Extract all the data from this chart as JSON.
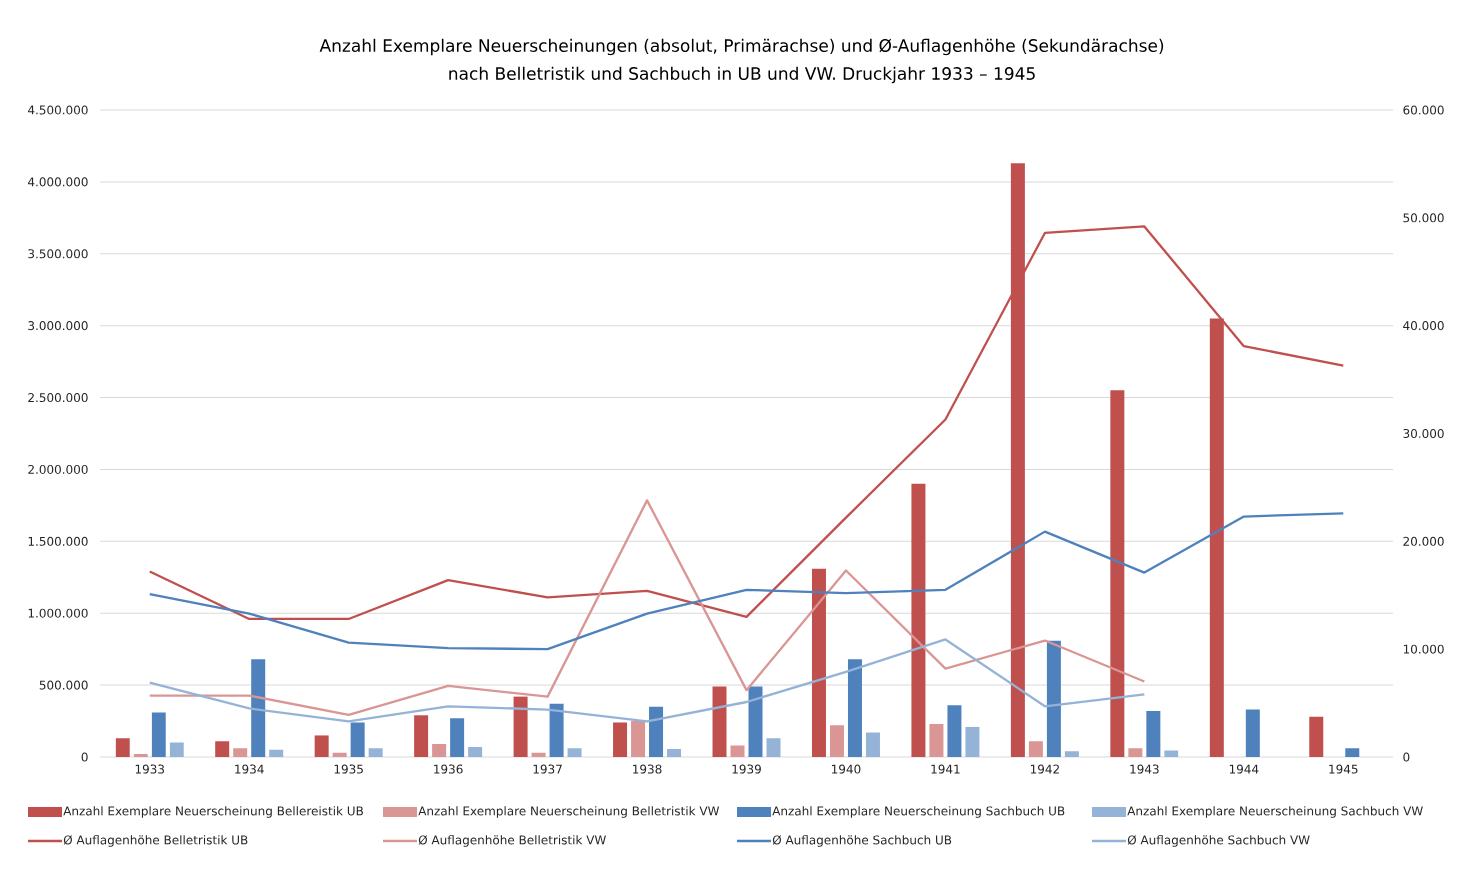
{
  "chart_data": {
    "type": "bar",
    "title": "Anzahl Exemplare Neuerscheinungen (absolut, Primärachse) und Ø-Auflagenhöhe (Sekundärachse)",
    "subtitle": "nach Belletristik und Sachbuch in UB und VW. Druckjahr 1933 – 1945",
    "categories": [
      "1933",
      "1934",
      "1935",
      "1936",
      "1937",
      "1938",
      "1939",
      "1940",
      "1941",
      "1942",
      "1943",
      "1944",
      "1945"
    ],
    "series": [
      {
        "name": "Anzahl Exemplare Neuerscheinung Bellereistik UB",
        "color": "#c0504d",
        "values": [
          130000,
          110000,
          150000,
          290000,
          420000,
          240000,
          490000,
          1310000,
          1900000,
          4130000,
          2550000,
          3050000,
          280000
        ]
      },
      {
        "name": "Anzahl Exemplare Neuerscheinung Belletristik VW",
        "color": "#d99694",
        "values": [
          20000,
          60000,
          30000,
          90000,
          30000,
          250000,
          80000,
          220000,
          230000,
          110000,
          60000,
          null,
          null
        ]
      },
      {
        "name": "Anzahl Exemplare Neuerscheinung Sachbuch UB",
        "color": "#4f81bd",
        "values": [
          310000,
          680000,
          240000,
          270000,
          370000,
          350000,
          490000,
          680000,
          360000,
          810000,
          320000,
          330000,
          60000
        ]
      },
      {
        "name": "Anzahl Exemplare Neuerscheinung Sachbuch VW",
        "color": "#95b3d7",
        "values": [
          100000,
          50000,
          60000,
          70000,
          60000,
          55000,
          130000,
          170000,
          210000,
          40000,
          45000,
          null,
          null
        ]
      },
      {
        "name": "Ø Auflagenhöhe Belletristik UB",
        "type": "line",
        "axis": "y2",
        "color": "#c0504d",
        "values": [
          17200,
          12800,
          12800,
          16400,
          14800,
          15400,
          13000,
          22200,
          31300,
          48600,
          49200,
          38100,
          36300
        ]
      },
      {
        "name": "Ø Auflagenhöhe Belletristik VW",
        "type": "line",
        "axis": "y2",
        "color": "#d99694",
        "values": [
          5700,
          5700,
          3900,
          6600,
          5600,
          23800,
          6200,
          17300,
          8200,
          10800,
          7000,
          null,
          null
        ]
      },
      {
        "name": "Ø Auflagenhöhe Sachbuch UB",
        "type": "line",
        "axis": "y2",
        "color": "#4f81bd",
        "values": [
          15100,
          13300,
          10600,
          10100,
          10000,
          13300,
          15500,
          15200,
          15500,
          20900,
          17100,
          22300,
          22600
        ]
      },
      {
        "name": "Ø Auflagenhöhe Sachbuch VW",
        "type": "line",
        "axis": "y2",
        "color": "#95b3d7",
        "values": [
          6900,
          4500,
          3300,
          4700,
          4400,
          3300,
          5100,
          7900,
          10900,
          4700,
          5800,
          null,
          null
        ]
      }
    ],
    "ylim": [
      0,
      4500000
    ],
    "yticks": [
      0,
      {
        "value": 500000,
        "label": "500.000"
      },
      {
        "value": 1000000,
        "label": "1.000.000"
      },
      {
        "value": 1500000,
        "label": "1.500.000"
      },
      {
        "value": 2000000,
        "label": "2.000.000"
      },
      {
        "value": 2500000,
        "label": "2.500.000"
      },
      {
        "value": 3000000,
        "label": "3.000.000"
      },
      {
        "value": 3500000,
        "label": "3.500.000"
      },
      {
        "value": 4000000,
        "label": "4.000.000"
      },
      {
        "value": 4500000,
        "label": "4.500.000"
      }
    ],
    "y2lim": [
      0,
      60000
    ],
    "y2ticks": [
      0,
      {
        "value": 10000,
        "label": "10.000"
      },
      {
        "value": 20000,
        "label": "20.000"
      },
      {
        "value": 30000,
        "label": "30.000"
      },
      {
        "value": 40000,
        "label": "40.000"
      },
      {
        "value": 50000,
        "label": "50.000"
      },
      {
        "value": 60000,
        "label": "60.000"
      }
    ],
    "grid": "y",
    "legend": "bottom"
  }
}
